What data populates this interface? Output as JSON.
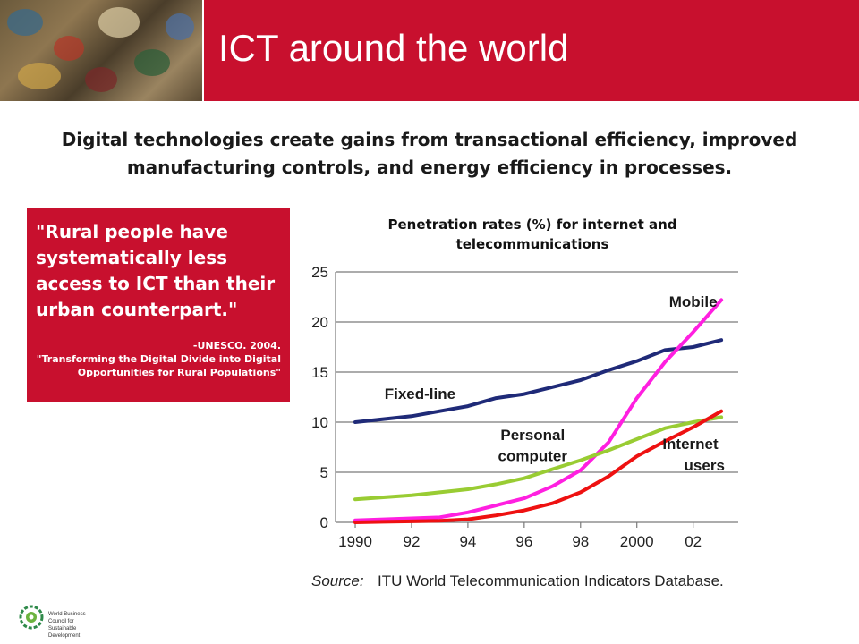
{
  "header": {
    "title": "ICT around the world"
  },
  "lead": "Digital technologies create gains from transactional efficiency, improved manufacturing controls, and energy efficiency in processes.",
  "quote": {
    "text": "\"Rural people have systematically less access to ICT than their urban counterpart.\"",
    "citation_line1": "-UNESCO. 2004.",
    "citation_line2": "\"Transforming the Digital Divide into Digital Opportunities for Rural Populations\""
  },
  "chart_title": "Penetration rates (%) for internet and telecommunications",
  "footer_logo_text": "World Business Council for Sustainable Development",
  "chart_data": {
    "type": "line",
    "title": "Penetration rates (%) for internet and telecommunications",
    "xlabel": "",
    "ylabel": "",
    "x": [
      1990,
      1991,
      1992,
      1993,
      1994,
      1995,
      1996,
      1997,
      1998,
      1999,
      2000,
      2001,
      2002,
      2003
    ],
    "x_tick_values": [
      1990,
      1992,
      1994,
      1996,
      1998,
      2000,
      2002
    ],
    "x_tick_labels": [
      "1990",
      "92",
      "94",
      "96",
      "98",
      "2000",
      "02"
    ],
    "y_ticks": [
      0,
      5,
      10,
      15,
      20,
      25
    ],
    "xlim": [
      1989.3,
      2003.6
    ],
    "ylim": [
      0,
      25
    ],
    "grid": true,
    "series": [
      {
        "name": "Fixed-line",
        "color": "#1f2a78",
        "values": [
          10.0,
          10.3,
          10.6,
          11.1,
          11.6,
          12.4,
          12.8,
          13.5,
          14.2,
          15.2,
          16.1,
          17.2,
          17.5,
          18.2
        ]
      },
      {
        "name": "Mobile",
        "color": "#ff1fe0",
        "values": [
          0.2,
          0.3,
          0.4,
          0.5,
          1.0,
          1.7,
          2.4,
          3.6,
          5.2,
          8.0,
          12.4,
          16.0,
          19.0,
          22.2
        ]
      },
      {
        "name": "Personal computer",
        "color": "#99cc33",
        "values": [
          2.3,
          2.5,
          2.7,
          3.0,
          3.3,
          3.8,
          4.4,
          5.3,
          6.2,
          7.2,
          8.3,
          9.4,
          10.0,
          10.5
        ]
      },
      {
        "name": "Internet users",
        "color": "#ee1111",
        "values": [
          0.0,
          0.05,
          0.1,
          0.15,
          0.3,
          0.7,
          1.2,
          1.9,
          3.0,
          4.6,
          6.6,
          8.1,
          9.5,
          11.1
        ]
      }
    ],
    "annotations": [
      {
        "text": "Mobile",
        "x": 2002.0,
        "y": 21.5
      },
      {
        "text": "Fixed-line",
        "x": 1992.3,
        "y": 12.3
      },
      {
        "text": "Personal",
        "x": 1996.3,
        "y": 8.2
      },
      {
        "text": "computer",
        "x": 1996.3,
        "y": 6.1
      },
      {
        "text": "Internet",
        "x": 2001.9,
        "y": 7.3
      },
      {
        "text": "users",
        "x": 2002.4,
        "y": 5.2
      }
    ],
    "source_prefix": "Source:",
    "source_text": "ITU World Telecommunication Indicators Database."
  }
}
